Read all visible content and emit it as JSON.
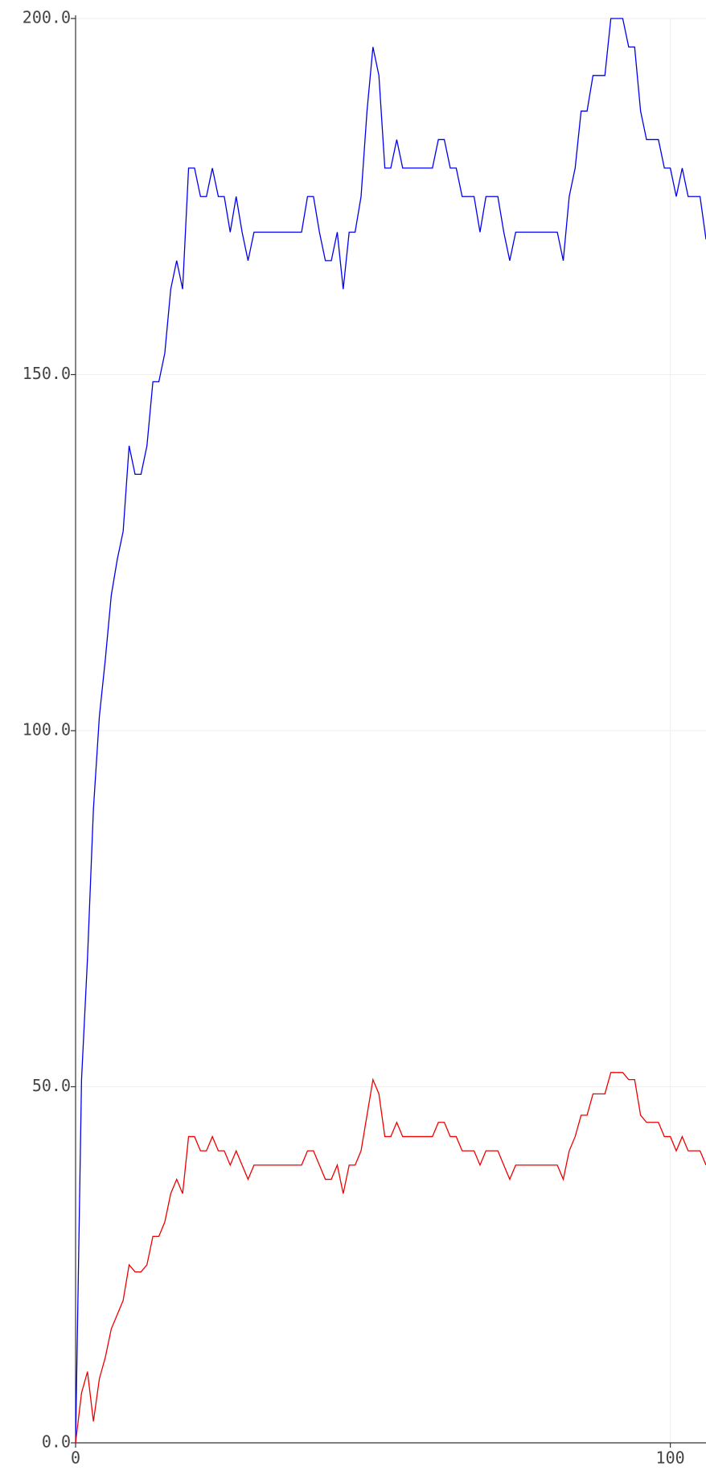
{
  "chart_data": {
    "type": "line",
    "x": [
      0,
      1,
      2,
      3,
      4,
      5,
      6,
      7,
      8,
      9,
      10,
      11,
      12,
      13,
      14,
      15,
      16,
      17,
      18,
      19,
      20,
      21,
      22,
      23,
      24,
      25,
      26,
      27,
      28,
      29,
      30,
      31,
      32,
      33,
      34,
      35,
      36,
      37,
      38,
      39,
      40,
      41,
      42,
      43,
      44,
      45,
      46,
      47,
      48,
      49,
      50,
      51,
      52,
      53,
      54,
      55,
      56,
      57,
      58,
      59,
      60,
      61,
      62,
      63,
      64,
      65,
      66,
      67,
      68,
      69,
      70,
      71,
      72,
      73,
      74,
      75,
      76,
      77,
      78,
      79,
      80,
      81,
      82,
      83,
      84,
      85,
      86,
      87,
      88,
      89,
      90,
      91,
      92,
      93,
      94,
      95,
      96,
      97,
      98,
      99,
      100,
      101,
      102,
      103,
      104,
      105,
      106
    ],
    "series": [
      {
        "color": "#0000ee",
        "values": [
          0,
          51,
          68,
          89,
          102,
          110,
          119,
          124,
          128,
          140,
          136,
          136,
          140,
          149,
          149,
          153,
          162,
          166,
          162,
          179,
          179,
          175,
          175,
          179,
          175,
          175,
          170,
          175,
          170,
          166,
          170,
          170,
          170,
          170,
          170,
          170,
          170,
          170,
          170,
          175,
          175,
          170,
          166,
          166,
          170,
          162,
          170,
          170,
          175,
          187,
          196,
          192,
          179,
          179,
          183,
          179,
          179,
          179,
          179,
          179,
          179,
          183,
          183,
          179,
          179,
          175,
          175,
          175,
          170,
          175,
          175,
          175,
          170,
          166,
          170,
          170,
          170,
          170,
          170,
          170,
          170,
          170,
          166,
          175,
          179,
          187,
          187,
          192,
          192,
          192,
          200,
          200,
          200,
          196,
          196,
          187,
          183,
          183,
          183,
          179,
          179,
          175,
          179,
          175,
          175,
          175,
          169
        ]
      },
      {
        "color": "#ee0000",
        "values": [
          0,
          7,
          10,
          3,
          9,
          12,
          16,
          18,
          20,
          25,
          24,
          24,
          25,
          29,
          29,
          31,
          35,
          37,
          35,
          43,
          43,
          41,
          41,
          43,
          41,
          41,
          39,
          41,
          39,
          37,
          39,
          39,
          39,
          39,
          39,
          39,
          39,
          39,
          39,
          41,
          41,
          39,
          37,
          37,
          39,
          35,
          39,
          39,
          41,
          46,
          51,
          49,
          43,
          43,
          45,
          43,
          43,
          43,
          43,
          43,
          43,
          45,
          45,
          43,
          43,
          41,
          41,
          41,
          39,
          41,
          41,
          41,
          39,
          37,
          39,
          39,
          39,
          39,
          39,
          39,
          39,
          39,
          37,
          41,
          43,
          46,
          46,
          49,
          49,
          49,
          52,
          52,
          52,
          51,
          51,
          46,
          45,
          45,
          45,
          43,
          43,
          41,
          43,
          41,
          41,
          41,
          39
        ]
      }
    ],
    "xlim": [
      0,
      106
    ],
    "xticks": [
      0,
      100
    ],
    "ylim": [
      0,
      200
    ],
    "yticks": [
      {
        "value": 0,
        "label": "0.0"
      },
      {
        "value": 50,
        "label": "50.0"
      },
      {
        "value": 100,
        "label": "100.0"
      },
      {
        "value": 150,
        "label": "150.0"
      },
      {
        "value": 200,
        "label": "200.0"
      }
    ],
    "grid": true
  }
}
